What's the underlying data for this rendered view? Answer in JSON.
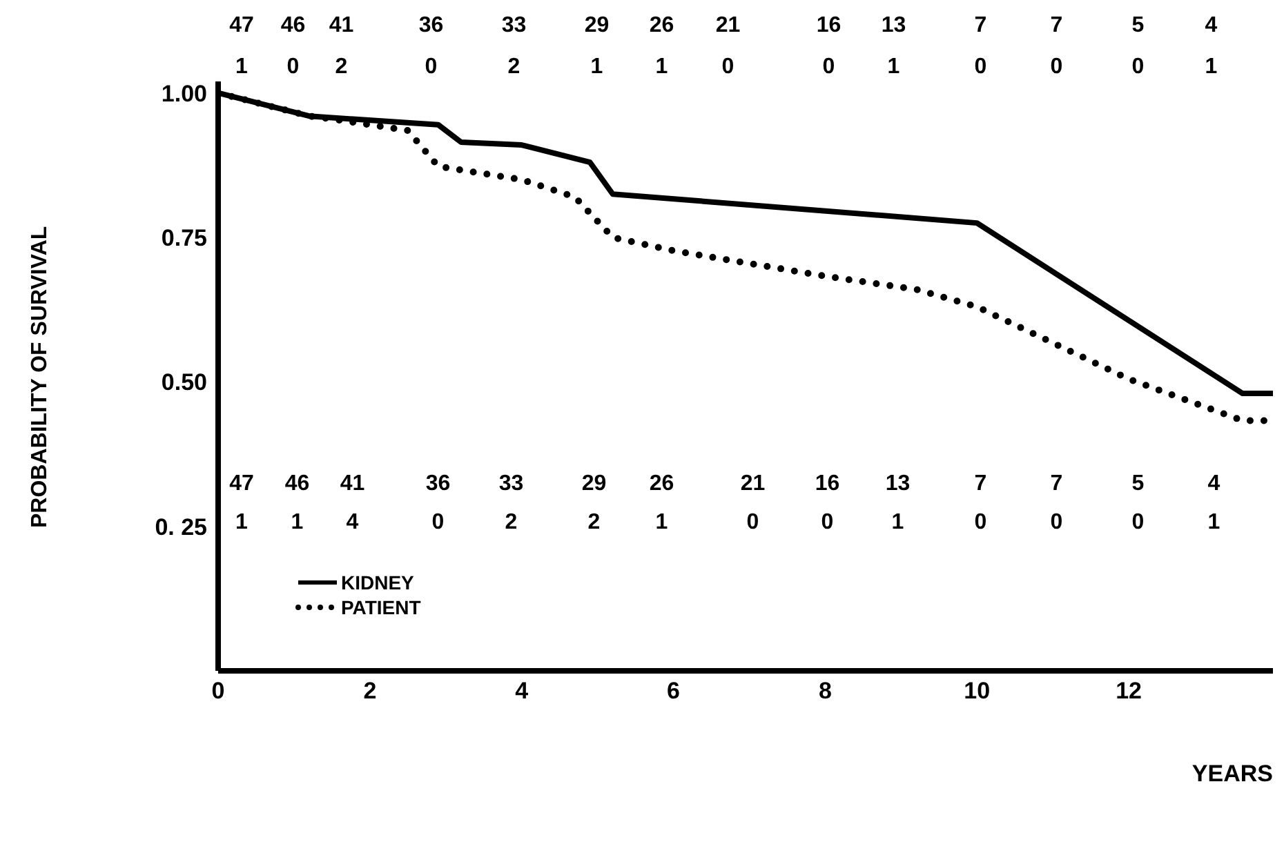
{
  "chart_data": {
    "type": "line",
    "xlabel": "YEARS",
    "ylabel": "PROBABILITY OF SURVIVAL",
    "xlim": [
      0,
      13.9
    ],
    "xticks": [
      0,
      2,
      4,
      6,
      8,
      10,
      12
    ],
    "ylim": [
      0,
      1.02
    ],
    "yticks": [
      {
        "value": 0.25,
        "label": "0. 25"
      },
      {
        "value": 0.5,
        "label": "0.50"
      },
      {
        "value": 0.75,
        "label": "0.75"
      },
      {
        "value": 1,
        "label": "1.00"
      }
    ],
    "grid": false,
    "legend": "bottom left",
    "series": [
      {
        "name": "KIDNEY",
        "color": "#000000",
        "line_style": "solid",
        "x": [
          0,
          1.2,
          2.9,
          3.2,
          4,
          4.9,
          5.2,
          10,
          13.5,
          13.9
        ],
        "values": [
          1.0,
          0.96,
          0.945,
          0.915,
          0.91,
          0.88,
          0.825,
          0.775,
          0.48,
          0.48
        ]
      },
      {
        "name": "PATIENT",
        "color": "#000000",
        "line_style": "dotted",
        "x": [
          0,
          1.2,
          1.5,
          2.5,
          2.9,
          4,
          4.7,
          5.2,
          6,
          8,
          9.2,
          10,
          12,
          13.5,
          13.9
        ],
        "values": [
          1.0,
          0.96,
          0.955,
          0.935,
          0.873,
          0.85,
          0.82,
          0.75,
          0.727,
          0.683,
          0.66,
          0.63,
          0.505,
          0.433,
          0.433
        ]
      }
    ],
    "annotations": [
      "47 46 41 36 33 29 26 21 16 13 7 7 5 4",
      "1 0 2 0 2 1 1 0 0 1 0 0 0 1",
      "47 46 41 36 33 29 26 21 16 13 7 7 5 4",
      "1 1 4 0 2 2 1 0 0 1 0 0 0 1"
    ]
  }
}
